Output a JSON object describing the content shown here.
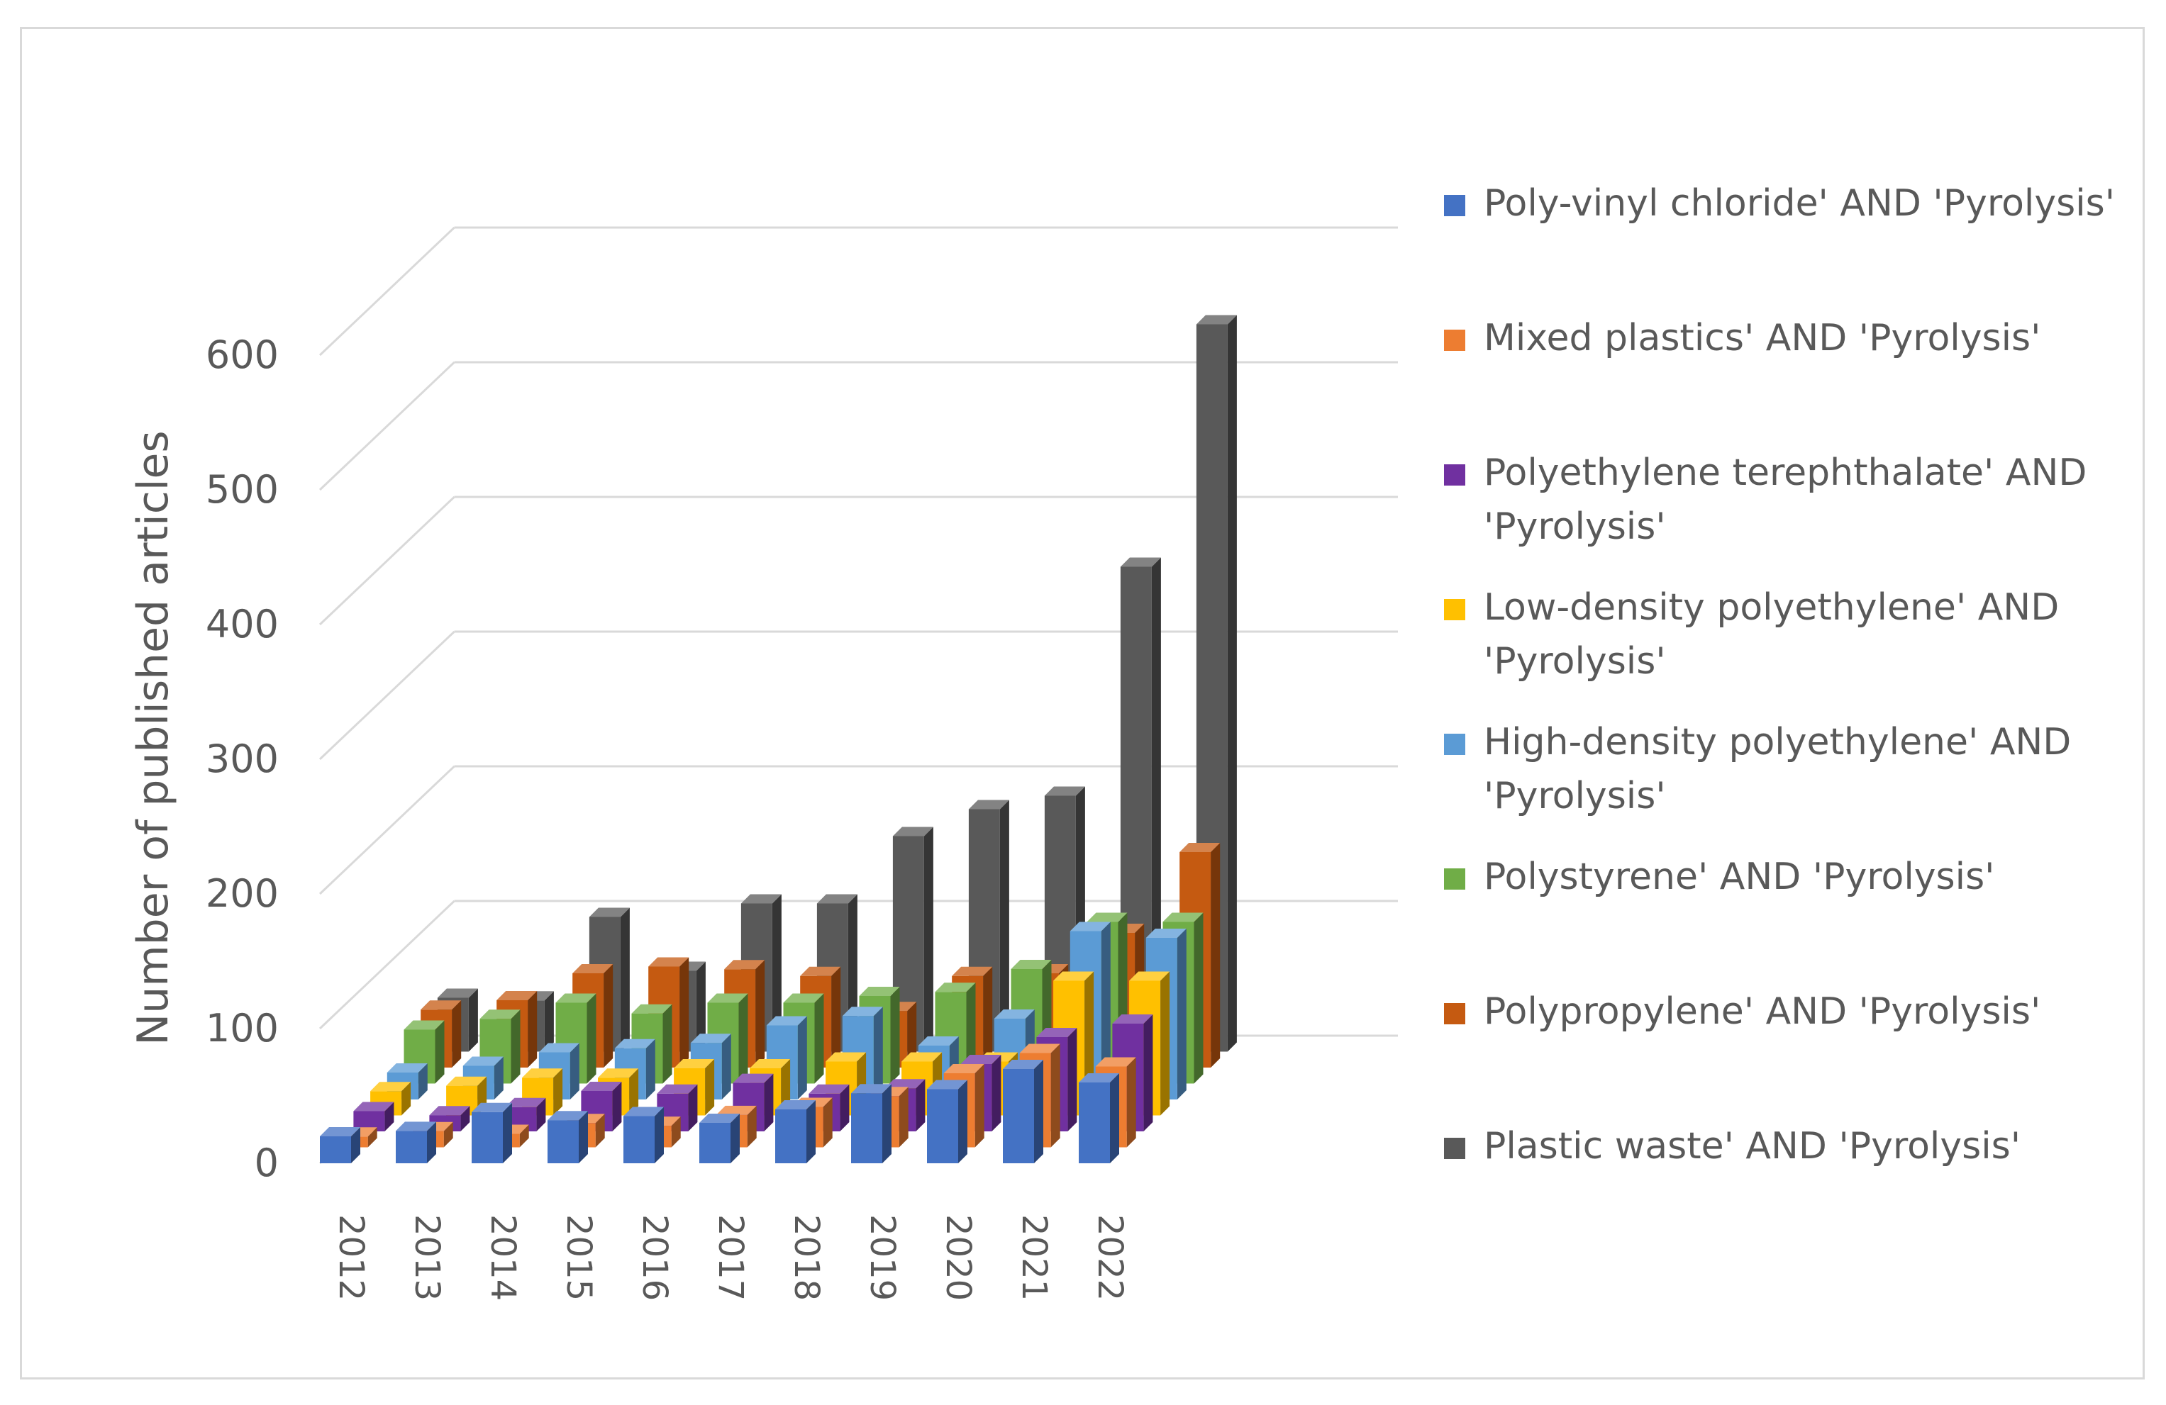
{
  "chart_data": {
    "type": "bar",
    "variant": "3d-column",
    "title": "",
    "ylabel": "Number of published articles",
    "xlabel": "",
    "ylim": [
      0,
      600
    ],
    "yticks": [
      0,
      100,
      200,
      300,
      400,
      500,
      600
    ],
    "grid": true,
    "legend_position": "right",
    "categories": [
      "2012",
      "2013",
      "2014",
      "2015",
      "2016",
      "2017",
      "2018",
      "2019",
      "2020",
      "2021",
      "2022"
    ],
    "series": [
      {
        "name": "Poly-vinyl chloride' AND 'Pyrolysis'",
        "legend_lines": [
          "Poly-vinyl chloride' AND 'Pyrolysis'"
        ],
        "color": "#4472c4",
        "values": [
          20,
          24,
          38,
          32,
          35,
          30,
          40,
          52,
          55,
          70,
          60
        ]
      },
      {
        "name": "Mixed plastics' AND 'Pyrolysis'",
        "legend_lines": [
          "Mixed plastics' AND 'Pyrolysis'"
        ],
        "color": "#ed7d31",
        "values": [
          8,
          12,
          10,
          18,
          16,
          24,
          30,
          38,
          55,
          70,
          60
        ]
      },
      {
        "name": "Polyethylene terephthalate' AND 'Pyrolysis'",
        "legend_lines": [
          "Polyethylene terephthalate' AND",
          "'Pyrolysis'"
        ],
        "color": "#7030a0",
        "values": [
          15,
          12,
          18,
          30,
          28,
          36,
          28,
          32,
          50,
          70,
          80
        ]
      },
      {
        "name": "Low-density polyethylene' AND 'Pyrolysis'",
        "legend_lines": [
          "Low-density polyethylene' AND",
          "'Pyrolysis'"
        ],
        "color": "#ffc000",
        "values": [
          18,
          22,
          28,
          28,
          35,
          35,
          40,
          40,
          40,
          100,
          100
        ]
      },
      {
        "name": "High-density polyethylene' AND 'Pyrolysis'",
        "legend_lines": [
          "High-density polyethylene' AND",
          "'Pyrolysis'"
        ],
        "color": "#5b9bd5",
        "values": [
          20,
          25,
          35,
          38,
          42,
          55,
          62,
          40,
          60,
          125,
          120
        ]
      },
      {
        "name": "Polystyrene' AND 'Pyrolysis'",
        "legend_lines": [
          "Polystyrene' AND 'Pyrolysis'"
        ],
        "color": "#70ad47",
        "values": [
          40,
          48,
          60,
          52,
          60,
          60,
          65,
          68,
          85,
          120,
          120
        ]
      },
      {
        "name": "Polypropylene' AND 'Pyrolysis'",
        "legend_lines": [
          "Polypropylene' AND 'Pyrolysis'"
        ],
        "color": "#c55a11",
        "values": [
          43,
          50,
          70,
          75,
          73,
          68,
          42,
          68,
          70,
          100,
          160
        ]
      },
      {
        "name": "Plastic waste' AND 'Pyrolysis'",
        "legend_lines": [
          "Plastic waste' AND 'Pyrolysis'"
        ],
        "color": "#595959",
        "values": [
          40,
          38,
          100,
          60,
          110,
          110,
          160,
          180,
          190,
          360,
          540
        ]
      }
    ]
  }
}
